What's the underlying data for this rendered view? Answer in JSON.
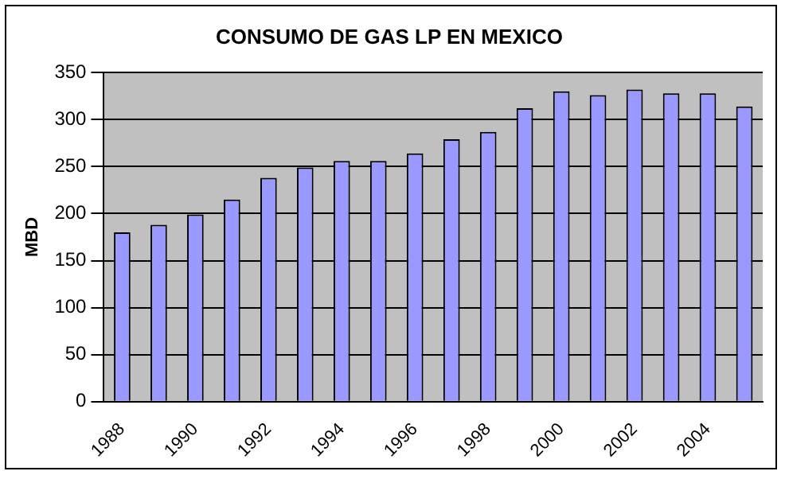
{
  "chart_data": {
    "type": "bar",
    "title": "CONSUMO DE GAS LP EN MEXICO",
    "ylabel": "MBD",
    "categories": [
      "1988",
      null,
      "1990",
      null,
      "1992",
      null,
      "1994",
      null,
      "1996",
      null,
      "1998",
      null,
      "2000",
      null,
      "2002",
      null,
      "2004",
      null
    ],
    "values": [
      180,
      188,
      199,
      215,
      238,
      249,
      256,
      256,
      264,
      279,
      287,
      312,
      330,
      326,
      332,
      328,
      328,
      314
    ],
    "color": "#9999ff",
    "ylim": [
      0,
      350
    ],
    "yticks": [
      0,
      50,
      100,
      150,
      200,
      250,
      300,
      350
    ],
    "grid": "y",
    "legend": false
  }
}
